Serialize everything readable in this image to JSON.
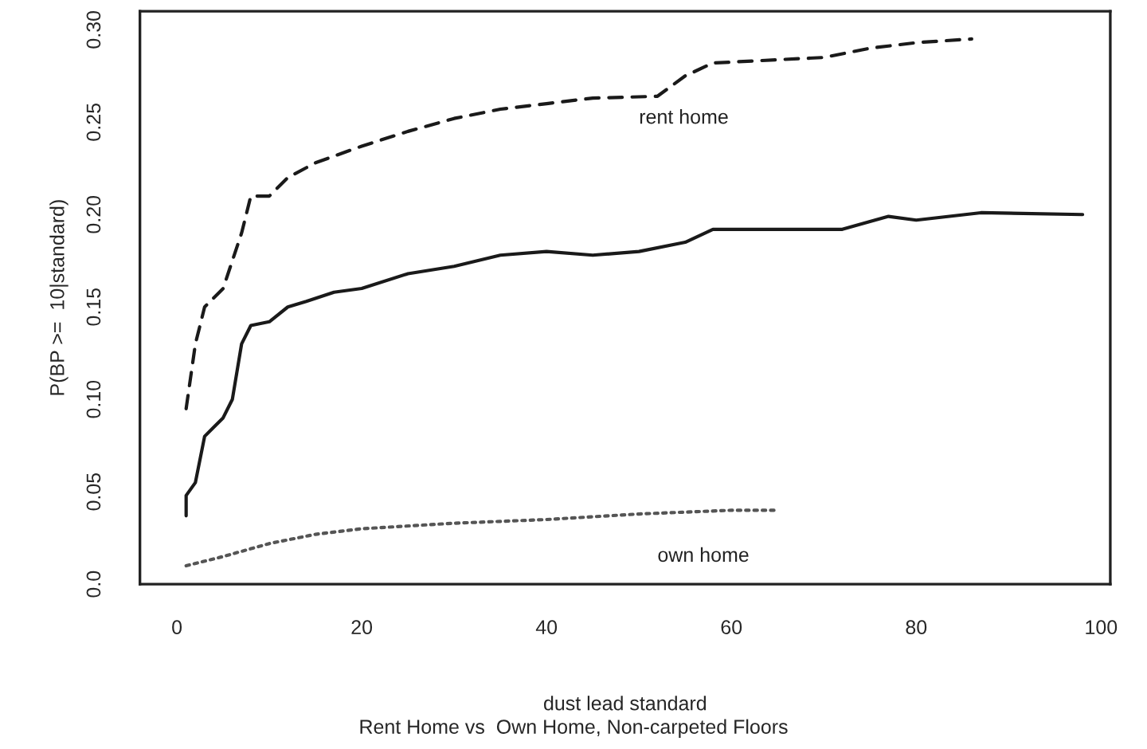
{
  "chart_data": {
    "type": "line",
    "title": "Rent Home vs  Own Home, Non-carpeted Floors",
    "xlabel": "dust lead standard",
    "ylabel": "P(BP >=  10|standard)",
    "xlim": [
      -4,
      101
    ],
    "xticks": [
      0,
      20,
      40,
      60,
      80,
      100
    ],
    "ylim": [
      0,
      0.31
    ],
    "yticks": [
      {
        "value": 0,
        "label": "0.0"
      },
      0.05,
      {
        "value": 0.1,
        "label": "0.10"
      },
      0.15,
      {
        "value": 0.2,
        "label": "0.20"
      },
      0.25,
      {
        "value": 0.3,
        "label": "0.30"
      }
    ],
    "grid": false,
    "legend": false,
    "series": [
      {
        "color": "#1a1a1a",
        "line_style": "solid",
        "x": [
          1,
          1,
          2,
          3,
          4,
          5,
          6,
          7,
          8,
          10,
          12,
          14,
          17,
          20,
          25,
          30,
          35,
          40,
          45,
          50,
          55,
          58,
          65,
          72,
          77,
          80,
          87,
          98
        ],
        "values": [
          0.037,
          0.048,
          0.055,
          0.08,
          0.085,
          0.09,
          0.1,
          0.13,
          0.14,
          0.142,
          0.15,
          0.153,
          0.158,
          0.16,
          0.168,
          0.172,
          0.178,
          0.18,
          0.178,
          0.18,
          0.185,
          0.192,
          0.192,
          0.192,
          0.199,
          0.197,
          0.201,
          0.2
        ]
      },
      {
        "name": "rent home",
        "color": "#1a1a1a",
        "line_style": "dashed",
        "x": [
          1,
          2,
          3,
          5,
          7,
          8,
          10,
          12,
          15,
          20,
          25,
          30,
          35,
          40,
          45,
          52,
          55,
          58,
          70,
          75,
          80,
          86
        ],
        "values": [
          0.095,
          0.13,
          0.15,
          0.16,
          0.19,
          0.21,
          0.21,
          0.22,
          0.228,
          0.237,
          0.245,
          0.252,
          0.257,
          0.26,
          0.263,
          0.264,
          0.275,
          0.282,
          0.285,
          0.29,
          0.293,
          0.295
        ]
      },
      {
        "name": "own home",
        "color": "#555555",
        "line_style": "dotted",
        "x": [
          1,
          5,
          10,
          15,
          20,
          30,
          40,
          50,
          60,
          65
        ],
        "values": [
          0.01,
          0.015,
          0.022,
          0.027,
          0.03,
          0.033,
          0.035,
          0.038,
          0.04,
          0.04
        ]
      }
    ]
  }
}
